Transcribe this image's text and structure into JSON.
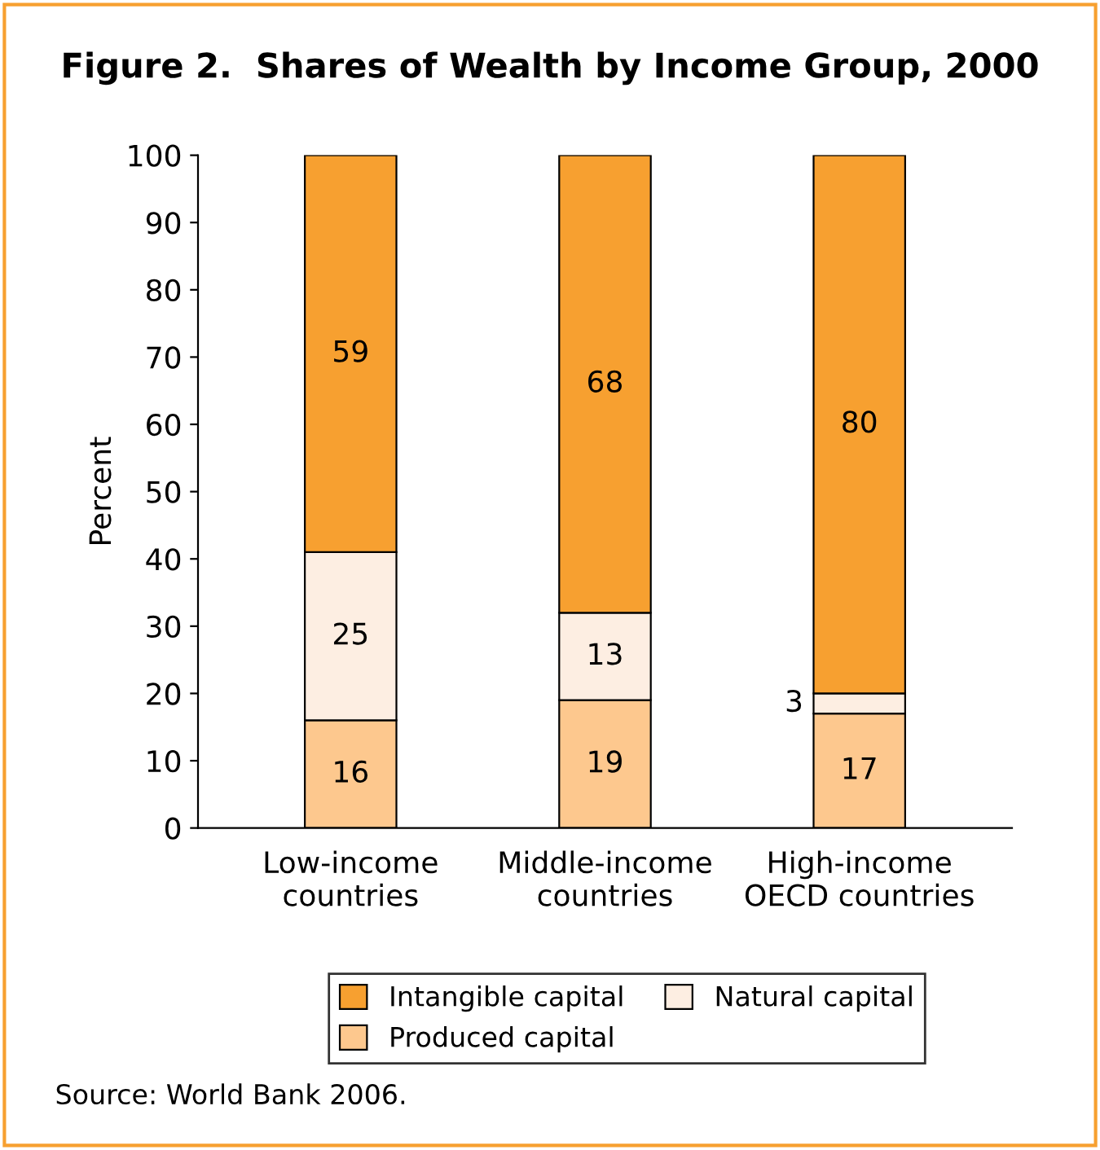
{
  "chart_data": {
    "type": "bar",
    "title": "Figure 2.  Shares of Wealth by Income Group, 2000",
    "ylabel": "Percent",
    "categories": [
      "Low-income\ncountries",
      "Middle-income\ncountries",
      "High-income\nOECD countries"
    ],
    "stacked": true,
    "series": [
      {
        "name": "Produced capital",
        "color": "#fdc88e",
        "values": [
          16,
          19,
          17
        ]
      },
      {
        "name": "Natural capital",
        "color": "#fdeee2",
        "values": [
          25,
          13,
          3
        ]
      },
      {
        "name": "Intangible capital",
        "color": "#f7a030",
        "values": [
          59,
          68,
          80
        ]
      }
    ],
    "ylim": [
      0,
      100
    ],
    "yticks": [
      0,
      10,
      20,
      30,
      40,
      50,
      60,
      70,
      80,
      90,
      100
    ],
    "data_labels": true,
    "grid": false,
    "legend": "bottom",
    "annotations": [
      "Source: World Bank 2006."
    ]
  }
}
